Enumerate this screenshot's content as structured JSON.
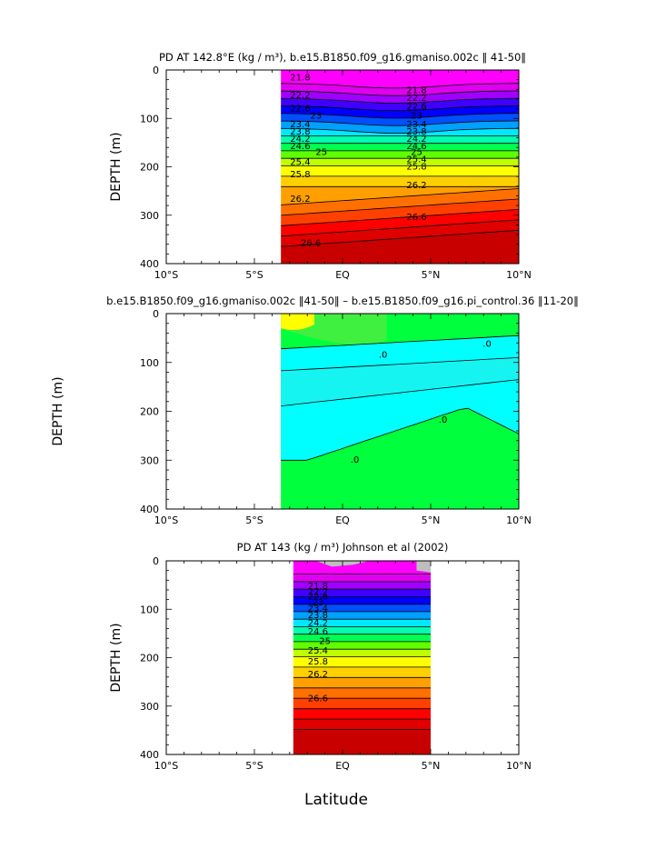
{
  "figure": {
    "xlabel": "Latitude"
  },
  "colors": {
    "band_scale": [
      "#ff00ff",
      "#e000f0",
      "#a000ff",
      "#4000ff",
      "#0000ff",
      "#0050ff",
      "#00a0ff",
      "#00e8ff",
      "#00ffb0",
      "#00ff50",
      "#60ff00",
      "#c0ff00",
      "#ffff00",
      "#ffd000",
      "#ffa000",
      "#ff7000",
      "#ff4000",
      "#ff0000",
      "#e00000",
      "#c80000"
    ],
    "diff_scale": {
      "yellow": "#ffff00",
      "green": "#00ff3c",
      "lightgreen": "#40f040",
      "cyan": "#00ffff",
      "teal": "#40e0d8"
    },
    "missing": "#bebebe"
  },
  "chart_data": [
    {
      "type": "contour",
      "title": "PD AT 142.8°E (kg / m³), b.e15.B1850.f09_g16.gmaniso.002c ‖ 41-50‖",
      "xlabel": "",
      "ylabel": "DEPTH (m)",
      "xlim": [
        -10,
        10
      ],
      "ylim": [
        400,
        0
      ],
      "x_ticks": [
        "10°S",
        "5°S",
        "EQ",
        "5°N",
        "10°N"
      ],
      "y_ticks": [
        "0",
        "100",
        "200",
        "300",
        "400"
      ],
      "data_x_range": [
        -3.5,
        10
      ],
      "levels": [
        21.8,
        22.2,
        22.6,
        23,
        23.4,
        23.8,
        24.2,
        24.6,
        25,
        25.4,
        25.8,
        26.2,
        26.6
      ],
      "contour_labels": [
        {
          "text": "21.8",
          "x": -2.4,
          "y": 22
        },
        {
          "text": "21.8",
          "x": 4.2,
          "y": 48
        },
        {
          "text": "22.2",
          "x": -2.4,
          "y": 58
        },
        {
          "text": "22.2",
          "x": 4.2,
          "y": 64
        },
        {
          "text": "22.6",
          "x": -2.4,
          "y": 85
        },
        {
          "text": "22.6",
          "x": 4.2,
          "y": 82
        },
        {
          "text": "23",
          "x": -1.5,
          "y": 100
        },
        {
          "text": "23",
          "x": 4.2,
          "y": 100
        },
        {
          "text": "23.4",
          "x": -2.4,
          "y": 118
        },
        {
          "text": "23.4",
          "x": 4.2,
          "y": 118
        },
        {
          "text": "23.8",
          "x": -2.4,
          "y": 133
        },
        {
          "text": "23.8",
          "x": 4.2,
          "y": 133
        },
        {
          "text": "24.2",
          "x": -2.4,
          "y": 148
        },
        {
          "text": "24.2",
          "x": 4.2,
          "y": 148
        },
        {
          "text": "24.6",
          "x": -2.4,
          "y": 163
        },
        {
          "text": "24.6",
          "x": 4.2,
          "y": 163
        },
        {
          "text": "25",
          "x": -1.2,
          "y": 176
        },
        {
          "text": "25",
          "x": 4.2,
          "y": 176
        },
        {
          "text": "25.4",
          "x": -2.4,
          "y": 196
        },
        {
          "text": "25.4",
          "x": 4.2,
          "y": 191
        },
        {
          "text": "25.8",
          "x": -2.4,
          "y": 222
        },
        {
          "text": "25.8",
          "x": 4.2,
          "y": 206
        },
        {
          "text": "26.2",
          "x": -2.4,
          "y": 272
        },
        {
          "text": "26.2",
          "x": 4.2,
          "y": 244
        },
        {
          "text": "26.6",
          "x": 4.2,
          "y": 310
        },
        {
          "text": "26.6",
          "x": -1.8,
          "y": 363
        }
      ]
    },
    {
      "type": "contour",
      "title": "b.e15.B1850.f09_g16.gmaniso.002c ‖41-50‖ – b.e15.B1850.f09_g16.pi_control.36 ‖11-20‖",
      "xlabel": "",
      "ylabel": "DEPTH (m)",
      "xlim": [
        -10,
        10
      ],
      "ylim": [
        400,
        0
      ],
      "x_ticks": [
        "10°S",
        "5°S",
        "EQ",
        "5°N",
        "10°N"
      ],
      "y_ticks": [
        "0",
        "100",
        "200",
        "300",
        "400"
      ],
      "data_x_range": [
        -3.5,
        10
      ],
      "contour_labels": [
        {
          "text": ".0",
          "x": 2.3,
          "y": 90
        },
        {
          "text": ".0",
          "x": 8.2,
          "y": 68
        },
        {
          "text": ".0",
          "x": 5.7,
          "y": 223
        },
        {
          "text": ".0",
          "x": 0.7,
          "y": 305
        }
      ]
    },
    {
      "type": "contour",
      "title": "PD AT 143 (kg / m³) Johnson et al (2002)",
      "xlabel": "Latitude",
      "ylabel": "DEPTH (m)",
      "xlim": [
        -10,
        10
      ],
      "ylim": [
        400,
        0
      ],
      "x_ticks": [
        "10°S",
        "5°S",
        "EQ",
        "5°N",
        "10°N"
      ],
      "y_ticks": [
        "0",
        "100",
        "200",
        "300",
        "400"
      ],
      "data_x_range": [
        -2.8,
        5
      ],
      "contour_labels": [
        {
          "text": "21.8",
          "x": -1.4,
          "y": 58
        },
        {
          "text": "22.2",
          "x": -1.4,
          "y": 70
        },
        {
          "text": "22.6",
          "x": -1.4,
          "y": 80
        },
        {
          "text": "23",
          "x": -1.4,
          "y": 92
        },
        {
          "text": "23.4",
          "x": -1.4,
          "y": 104
        },
        {
          "text": "23.8",
          "x": -1.4,
          "y": 118
        },
        {
          "text": "24.2",
          "x": -1.4,
          "y": 134
        },
        {
          "text": "24.6",
          "x": -1.4,
          "y": 152
        },
        {
          "text": "25",
          "x": -1.0,
          "y": 172
        },
        {
          "text": "25.4",
          "x": -1.4,
          "y": 192
        },
        {
          "text": "25.8",
          "x": -1.4,
          "y": 214
        },
        {
          "text": "26.2",
          "x": -1.4,
          "y": 240
        },
        {
          "text": "26.6",
          "x": -1.4,
          "y": 290
        }
      ]
    }
  ]
}
